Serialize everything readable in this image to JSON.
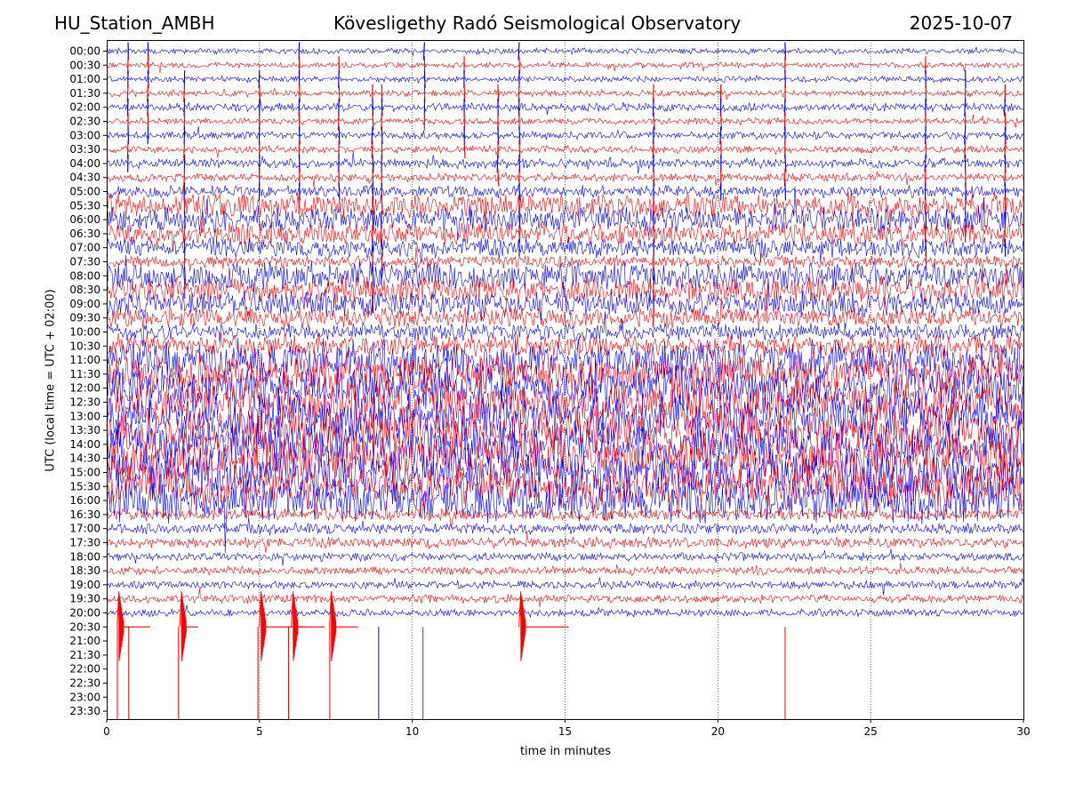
{
  "header": {
    "station": "HU_Station_AMBH",
    "observatory": "Kövesligethy Radó Seismological Observatory",
    "date": "2025-10-07"
  },
  "chart_data": {
    "type": "line",
    "title": "Kövesligethy Radó Seismological Observatory",
    "xlabel": "time in minutes",
    "ylabel": "UTC (local time = UTC + 02:00)",
    "xlim": [
      0,
      30
    ],
    "x_ticks": [
      "0",
      "5",
      "10",
      "15",
      "20",
      "25",
      "30"
    ],
    "x_gridlines": [
      5,
      10,
      15,
      20,
      25
    ],
    "y_ticks": [
      "00:00",
      "00:30",
      "01:00",
      "01:30",
      "02:00",
      "02:30",
      "03:00",
      "03:30",
      "04:00",
      "04:30",
      "05:00",
      "05:30",
      "06:00",
      "06:30",
      "07:00",
      "07:30",
      "08:00",
      "08:30",
      "09:00",
      "09:30",
      "10:00",
      "10:30",
      "11:00",
      "11:30",
      "12:00",
      "12:30",
      "13:00",
      "13:30",
      "14:00",
      "14:30",
      "15:00",
      "15:30",
      "16:00",
      "16:30",
      "17:00",
      "17:30",
      "18:00",
      "18:30",
      "19:00",
      "19:30",
      "20:00",
      "20:30",
      "21:00",
      "21:30",
      "22:00",
      "22:30",
      "23:00",
      "23:30"
    ],
    "trace_colors": [
      "#0000ff",
      "#ff0000"
    ],
    "trace_end_index": 40,
    "noise_level": [
      0.06,
      0.05,
      0.06,
      0.08,
      0.15,
      0.08,
      0.12,
      0.12,
      0.2,
      0.15,
      0.3,
      0.8,
      0.8,
      0.7,
      0.6,
      0.3,
      0.9,
      0.8,
      0.8,
      0.6,
      0.5,
      0.7,
      1.4,
      1.4,
      1.5,
      1.5,
      1.6,
      1.6,
      1.6,
      1.6,
      1.6,
      1.5,
      1.5,
      0.3,
      0.25,
      0.25,
      0.15,
      0.15,
      0.15,
      0.15,
      0.12,
      0.1,
      0,
      0,
      0,
      0,
      0,
      0
    ],
    "events_minutes": [
      0.7,
      1.35,
      2.55,
      5.0,
      6.3,
      7.6,
      8.7,
      9.0,
      10.4,
      11.7,
      12.8,
      13.5,
      17.9,
      20.1,
      22.2,
      26.8,
      28.1,
      29.4
    ],
    "quakes_row_2030": [
      0.4,
      2.45,
      5.05,
      6.1,
      7.35,
      13.55
    ]
  }
}
